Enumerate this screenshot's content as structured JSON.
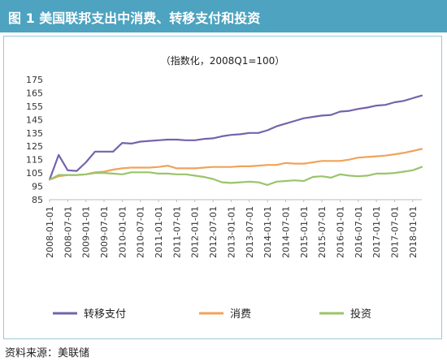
{
  "header": {
    "title": "图 1   美国联邦支出中消费、转移支付和投资"
  },
  "source": "资料来源：美联储",
  "colors": {
    "header_bg": "#4da3c0",
    "transfer": "#7563ab",
    "consumption": "#f0a35a",
    "investment": "#9bc46b"
  },
  "chart_data": {
    "type": "line",
    "title": "",
    "subtitle": "（指数化，2008Q1=100）",
    "xlabel": "",
    "ylabel": "",
    "ylim": [
      85,
      175
    ],
    "yticks": [
      85,
      95,
      105,
      115,
      125,
      135,
      145,
      155,
      165,
      175
    ],
    "grid": false,
    "legend": "bottom",
    "x_tick_labels": [
      "2008-01-01",
      "2008-07-01",
      "2009-01-01",
      "2009-07-01",
      "2010-01-01",
      "2010-07-01",
      "2011-01-01",
      "2011-07-01",
      "2012-01-01",
      "2012-07-01",
      "2013-01-01",
      "2013-07-01",
      "2014-01-01",
      "2014-07-01",
      "2015-01-01",
      "2015-07-01",
      "2016-01-01",
      "2016-07-01",
      "2017-01-01",
      "2017-07-01",
      "2018-01-01"
    ],
    "x": [
      "2008Q1",
      "2008Q2",
      "2008Q3",
      "2008Q4",
      "2009Q1",
      "2009Q2",
      "2009Q3",
      "2009Q4",
      "2010Q1",
      "2010Q2",
      "2010Q3",
      "2010Q4",
      "2011Q1",
      "2011Q2",
      "2011Q3",
      "2011Q4",
      "2012Q1",
      "2012Q2",
      "2012Q3",
      "2012Q4",
      "2013Q1",
      "2013Q2",
      "2013Q3",
      "2013Q4",
      "2014Q1",
      "2014Q2",
      "2014Q3",
      "2014Q4",
      "2015Q1",
      "2015Q2",
      "2015Q3",
      "2015Q4",
      "2016Q1",
      "2016Q2",
      "2016Q3",
      "2016Q4",
      "2017Q1",
      "2017Q2",
      "2017Q3",
      "2017Q4",
      "2018Q1",
      "2018Q2"
    ],
    "series": [
      {
        "name": "转移支付",
        "color": "#7563ab",
        "values": [
          100,
          118.5,
          107,
          106.5,
          113,
          121,
          121,
          121,
          127.5,
          127,
          128.5,
          129,
          129.5,
          130,
          130,
          129.5,
          129.5,
          130.5,
          131,
          132.5,
          133.5,
          134,
          135,
          135,
          137,
          140,
          142,
          144,
          146,
          147,
          148,
          148.5,
          151,
          151.5,
          153,
          154,
          155.5,
          156,
          158,
          159,
          161,
          163
        ]
      },
      {
        "name": "消费",
        "color": "#f0a35a",
        "values": [
          100,
          102.5,
          103.5,
          103.5,
          104,
          105.5,
          106,
          107.5,
          108.5,
          109,
          109,
          109,
          109.5,
          110.5,
          108.5,
          108.5,
          108.5,
          109,
          109.5,
          109.5,
          109.5,
          110,
          110,
          110.5,
          111,
          111,
          112.5,
          112,
          112,
          113,
          114,
          114,
          114,
          115,
          116.5,
          117,
          117.5,
          118,
          119,
          120,
          121.5,
          123
        ]
      },
      {
        "name": "投资",
        "color": "#9bc46b",
        "values": [
          100,
          103.5,
          103.5,
          103.5,
          104,
          105,
          105,
          104.5,
          104,
          105.5,
          105.5,
          105.5,
          104.5,
          104.5,
          104,
          104,
          103,
          102,
          100.5,
          98,
          97.5,
          98,
          98.5,
          98,
          96,
          98.5,
          99,
          99.5,
          99,
          102,
          102.5,
          101.5,
          104,
          103,
          102.5,
          103,
          104.5,
          104.5,
          105,
          106,
          107,
          109.5
        ]
      }
    ]
  }
}
